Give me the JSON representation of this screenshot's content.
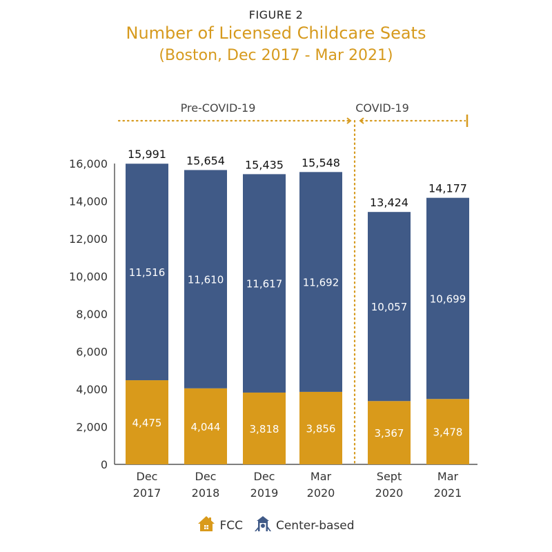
{
  "header": {
    "figure_label": "FIGURE 2",
    "title": "Number of Licensed Childcare Seats",
    "subtitle": "(Boston, Dec 2017 - Mar 2021)"
  },
  "colors": {
    "fcc": "#d99a1b",
    "center": "#405a87",
    "accent": "#d69a1e",
    "axis": "#333333"
  },
  "chart_data": {
    "type": "bar",
    "stacked": true,
    "title": "Number of Licensed Childcare Seats",
    "subtitle": "(Boston, Dec 2017 - Mar 2021)",
    "categories": [
      "Dec 2017",
      "Dec 2018",
      "Dec 2019",
      "Mar 2020",
      "Sept 2020",
      "Mar 2021"
    ],
    "category_lines": [
      [
        "Dec",
        "2017"
      ],
      [
        "Dec",
        "2018"
      ],
      [
        "Dec",
        "2019"
      ],
      [
        "Mar",
        "2020"
      ],
      [
        "Sept",
        "2020"
      ],
      [
        "Mar",
        "2021"
      ]
    ],
    "series": [
      {
        "name": "FCC",
        "values": [
          4475,
          4044,
          3818,
          3856,
          3367,
          3478
        ],
        "labels": [
          "4,475",
          "4,044",
          "3,818",
          "3,856",
          "3,367",
          "3,478"
        ]
      },
      {
        "name": "Center-based",
        "values": [
          11516,
          11610,
          11617,
          11692,
          10057,
          10699
        ],
        "labels": [
          "11,516",
          "11,610",
          "11,617",
          "11,692",
          "10,057",
          "10,699"
        ]
      }
    ],
    "totals": [
      15991,
      15654,
      15435,
      15548,
      13424,
      14177
    ],
    "total_labels": [
      "15,991",
      "15,654",
      "15,435",
      "15,548",
      "13,424",
      "14,177"
    ],
    "ylim": [
      0,
      16000
    ],
    "yticks": [
      0,
      2000,
      4000,
      6000,
      8000,
      10000,
      12000,
      14000,
      16000
    ],
    "ytick_labels": [
      "0",
      "2,000",
      "4,000",
      "6,000",
      "8,000",
      "10,000",
      "12,000",
      "14,000",
      "16,000"
    ],
    "xlabel": "",
    "ylabel": "",
    "grid": false,
    "annotations": [
      {
        "text": "Pre-COVID-19",
        "span": [
          "Dec 2017",
          "Mar 2020"
        ]
      },
      {
        "text": "COVID-19",
        "span": [
          "Sept 2020",
          "Mar 2021"
        ]
      }
    ],
    "legend": {
      "position": "bottom",
      "entries": [
        "FCC",
        "Center-based"
      ]
    }
  },
  "legend": {
    "fcc_label": "FCC",
    "center_label": "Center-based",
    "fcc_icon": "house-icon",
    "center_icon": "playground-icon"
  }
}
